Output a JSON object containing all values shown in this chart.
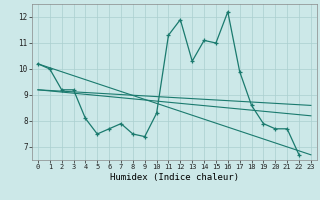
{
  "xlabel": "Humidex (Indice chaleur)",
  "curve_main": [
    10.2,
    10.0,
    9.2,
    9.2,
    8.1,
    7.5,
    7.7,
    7.9,
    7.5,
    7.4,
    8.3,
    11.3,
    11.9,
    10.3,
    11.1,
    11.0,
    12.2,
    9.9,
    8.6,
    7.9,
    7.7,
    7.7,
    6.7
  ],
  "straight_lines": [
    {
      "x": [
        0,
        23
      ],
      "y": [
        10.2,
        6.7
      ]
    },
    {
      "x": [
        0,
        23
      ],
      "y": [
        9.2,
        8.6
      ]
    },
    {
      "x": [
        0,
        23
      ],
      "y": [
        9.2,
        8.2
      ]
    }
  ],
  "bg_color": "#cce8e8",
  "grid_color": "#aacfcf",
  "line_color": "#1a7a6e",
  "ylim": [
    6.5,
    12.5
  ],
  "yticks": [
    7,
    8,
    9,
    10,
    11,
    12
  ],
  "xticks": [
    0,
    1,
    2,
    3,
    4,
    5,
    6,
    7,
    8,
    9,
    10,
    11,
    12,
    13,
    14,
    15,
    16,
    17,
    18,
    19,
    20,
    21,
    22,
    23
  ]
}
